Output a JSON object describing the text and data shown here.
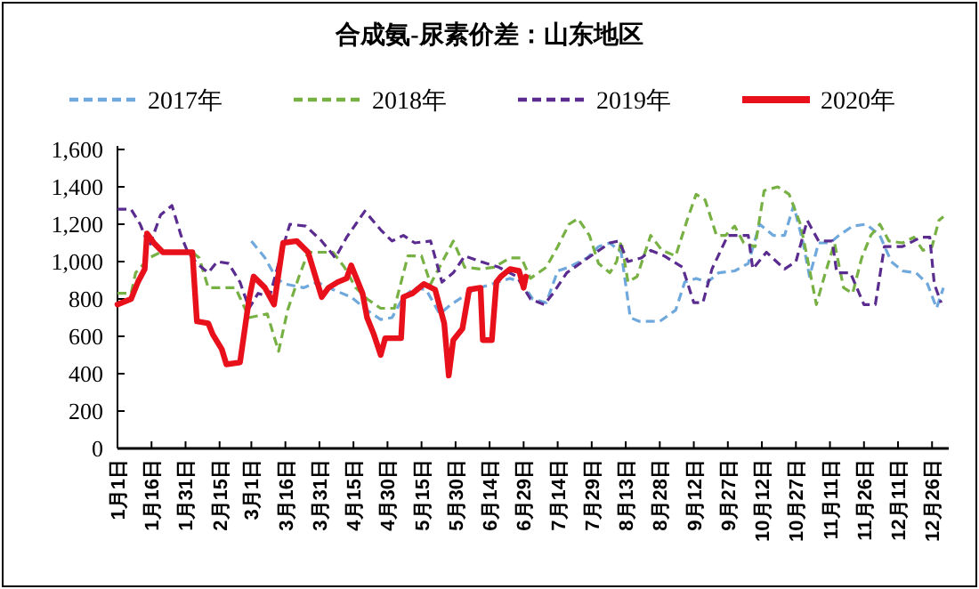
{
  "chart_data": {
    "type": "line",
    "title": "合成氨-尿素价差：山东地区",
    "legend": "top",
    "marker": "none",
    "xlim": [
      "--01-01",
      "--12-31"
    ],
    "xticks": [
      {
        "value": "--01-01",
        "label": "1月1日"
      },
      {
        "value": "--01-16",
        "label": "1月16日"
      },
      {
        "value": "--01-31",
        "label": "1月31日"
      },
      {
        "value": "--02-15",
        "label": "2月15日"
      },
      {
        "value": "--03-01",
        "label": "3月1日"
      },
      {
        "value": "--03-16",
        "label": "3月16日"
      },
      {
        "value": "--03-31",
        "label": "3月31日"
      },
      {
        "value": "--04-15",
        "label": "4月15日"
      },
      {
        "value": "--04-30",
        "label": "4月30日"
      },
      {
        "value": "--05-15",
        "label": "5月15日"
      },
      {
        "value": "--05-30",
        "label": "5月30日"
      },
      {
        "value": "--06-14",
        "label": "6月14日"
      },
      {
        "value": "--06-29",
        "label": "6月29日"
      },
      {
        "value": "--07-14",
        "label": "7月14日"
      },
      {
        "value": "--07-29",
        "label": "7月29日"
      },
      {
        "value": "--08-13",
        "label": "8月13日"
      },
      {
        "value": "--08-28",
        "label": "8月28日"
      },
      {
        "value": "--09-12",
        "label": "9月12日"
      },
      {
        "value": "--09-27",
        "label": "9月27日"
      },
      {
        "value": "--10-12",
        "label": "10月12日"
      },
      {
        "value": "--10-27",
        "label": "10月27日"
      },
      {
        "value": "--11-11",
        "label": "11月11日"
      },
      {
        "value": "--11-26",
        "label": "11月26日"
      },
      {
        "value": "--12-11",
        "label": "12月11日"
      },
      {
        "value": "--12-26",
        "label": "12月26日"
      }
    ],
    "ylim": [
      0,
      1600
    ],
    "yticks": [
      0,
      {
        "value": 200,
        "label": "200"
      },
      {
        "value": 400,
        "label": "400"
      },
      {
        "value": 600,
        "label": "600"
      },
      {
        "value": 800,
        "label": "800"
      },
      {
        "value": 1000,
        "label": "1,000"
      },
      {
        "value": 1200,
        "label": "1,200"
      },
      {
        "value": 1400,
        "label": "1,400"
      },
      {
        "value": 1600,
        "label": "1,600"
      }
    ],
    "series": [
      {
        "name": "2017年",
        "color": "#6fa8dc",
        "line_style": "dashed",
        "x": [
          "--03-01",
          "--03-07",
          "--03-12",
          "--03-16",
          "--03-24",
          "--03-30",
          "--04-06",
          "--04-14",
          "--04-21",
          "--04-27",
          "--05-02",
          "--05-07",
          "--05-12",
          "--05-17",
          "--05-23",
          "--05-28",
          "--06-02",
          "--06-07",
          "--06-15",
          "--06-23",
          "--06-28",
          "--07-03",
          "--07-09",
          "--07-14",
          "--07-19",
          "--07-27",
          "--08-01",
          "--08-06",
          "--08-11",
          "--08-15",
          "--08-19",
          "--08-28",
          "--09-04",
          "--09-08",
          "--09-13",
          "--09-18",
          "--09-23",
          "--09-30",
          "--10-06",
          "--10-11",
          "--10-17",
          "--10-22",
          "--10-26",
          "--10-30",
          "--11-02",
          "--11-06",
          "--11-11",
          "--11-15",
          "--11-21",
          "--11-27",
          "--12-03",
          "--12-08",
          "--12-13",
          "--12-19",
          "--12-24",
          "--12-28",
          "--12-31"
        ],
        "values": [
          1110,
          1020,
          910,
          880,
          860,
          890,
          850,
          810,
          740,
          690,
          700,
          810,
          860,
          850,
          720,
          770,
          810,
          850,
          880,
          910,
          890,
          800,
          780,
          950,
          970,
          1020,
          1080,
          1100,
          1050,
          700,
          680,
          680,
          740,
          890,
          910,
          890,
          940,
          950,
          990,
          1200,
          1140,
          1140,
          1300,
          1110,
          920,
          1100,
          1100,
          1140,
          1190,
          1200,
          1140,
          1000,
          950,
          940,
          880,
          750,
          860
        ]
      },
      {
        "name": "2018年",
        "color": "#77b043",
        "line_style": "dashed",
        "x": [
          "--01-01",
          "--01-07",
          "--01-09",
          "--01-15",
          "--01-20",
          "--02-03",
          "--02-06",
          "--02-10",
          "--02-22",
          "--02-28",
          "--03-08",
          "--03-13",
          "--03-17",
          "--03-22",
          "--03-26",
          "--04-06",
          "--04-11",
          "--04-16",
          "--04-21",
          "--04-27",
          "--05-03",
          "--05-06",
          "--05-09",
          "--05-15",
          "--05-19",
          "--05-29",
          "--06-03",
          "--06-10",
          "--06-16",
          "--06-23",
          "--06-28",
          "--07-02",
          "--07-09",
          "--07-14",
          "--07-19",
          "--07-23",
          "--07-28",
          "--08-01",
          "--08-06",
          "--08-09",
          "--08-11",
          "--08-14",
          "--08-18",
          "--08-24",
          "--08-29",
          "--09-04",
          "--09-09",
          "--09-13",
          "--09-17",
          "--09-22",
          "--09-26",
          "--09-30",
          "--10-04",
          "--10-09",
          "--10-13",
          "--10-19",
          "--10-24",
          "--10-29",
          "--11-01",
          "--11-05",
          "--11-09",
          "--11-13",
          "--11-17",
          "--11-21",
          "--11-25",
          "--11-29",
          "--12-03",
          "--12-07",
          "--12-13",
          "--12-18",
          "--12-22",
          "--12-26",
          "--12-29",
          "--12-31"
        ],
        "values": [
          830,
          830,
          940,
          1020,
          1050,
          1050,
          1020,
          860,
          860,
          700,
          720,
          520,
          740,
          920,
          1050,
          1050,
          970,
          860,
          800,
          750,
          750,
          890,
          1030,
          1030,
          880,
          1110,
          970,
          960,
          970,
          1020,
          1020,
          910,
          970,
          1080,
          1200,
          1230,
          1140,
          990,
          940,
          1000,
          1110,
          890,
          920,
          1140,
          1060,
          1030,
          1220,
          1360,
          1330,
          1140,
          1140,
          1190,
          1100,
          1080,
          1380,
          1400,
          1360,
          1200,
          1020,
          770,
          940,
          1100,
          860,
          830,
          1020,
          1140,
          1200,
          1110,
          1100,
          1130,
          1060,
          1080,
          1220,
          1240
        ]
      },
      {
        "name": "2019年",
        "color": "#5b2c8f",
        "line_style": "dashed",
        "x": [
          "--01-01",
          "--01-07",
          "--01-11",
          "--01-15",
          "--01-20",
          "--01-25",
          "--01-29",
          "--02-01",
          "--02-05",
          "--02-10",
          "--02-14",
          "--02-19",
          "--02-24",
          "--02-28",
          "--03-04",
          "--03-09",
          "--03-15",
          "--03-18",
          "--03-25",
          "--04-01",
          "--04-07",
          "--04-12",
          "--04-16",
          "--04-20",
          "--04-27",
          "--05-02",
          "--05-07",
          "--05-12",
          "--05-19",
          "--05-24",
          "--05-29",
          "--06-03",
          "--06-10",
          "--06-18",
          "--06-26",
          "--07-02",
          "--07-08",
          "--07-12",
          "--07-18",
          "--07-25",
          "--07-31",
          "--08-06",
          "--08-10",
          "--08-14",
          "--08-20",
          "--08-24",
          "--08-30",
          "--09-07",
          "--09-12",
          "--09-16",
          "--09-20",
          "--09-27",
          "--10-06",
          "--10-08",
          "--10-14",
          "--10-22",
          "--10-27",
          "--11-01",
          "--11-06",
          "--11-12",
          "--11-14",
          "--11-20",
          "--11-26",
          "--12-01",
          "--12-05",
          "--12-13",
          "--12-21",
          "--12-25",
          "--12-27",
          "--12-30"
        ],
        "values": [
          1280,
          1280,
          1200,
          1080,
          1250,
          1300,
          1140,
          1050,
          990,
          940,
          1000,
          990,
          890,
          750,
          830,
          810,
          1080,
          1200,
          1190,
          1110,
          1020,
          1130,
          1200,
          1270,
          1170,
          1110,
          1140,
          1100,
          1110,
          890,
          940,
          1030,
          1000,
          970,
          920,
          800,
          770,
          830,
          940,
          1000,
          1050,
          1100,
          1110,
          1000,
          1020,
          1060,
          1030,
          970,
          780,
          780,
          960,
          1140,
          1140,
          960,
          1050,
          960,
          1000,
          1220,
          1110,
          1110,
          940,
          940,
          770,
          770,
          1080,
          1080,
          1130,
          1130,
          880,
          780
        ]
      },
      {
        "name": "2020年",
        "color": "#e8101a",
        "line_style": "solid",
        "x": [
          "--01-01",
          "--01-07",
          "--01-10",
          "--01-13",
          "--01-14",
          "--01-17",
          "--01-21",
          "--02-03",
          "--02-05",
          "--02-10",
          "--02-12",
          "--02-16",
          "--02-18",
          "--02-24",
          "--02-28",
          "--03-02",
          "--03-07",
          "--03-11",
          "--03-15",
          "--03-21",
          "--03-26",
          "--04-01",
          "--04-04",
          "--04-08",
          "--04-12",
          "--04-14",
          "--04-19",
          "--04-21",
          "--04-24",
          "--04-27",
          "--04-29",
          "--05-06",
          "--05-07",
          "--05-11",
          "--05-16",
          "--05-21",
          "--05-25",
          "--05-27",
          "--05-29",
          "--06-02",
          "--06-05",
          "--06-10",
          "--06-11",
          "--06-15",
          "--06-17",
          "--06-19",
          "--06-23",
          "--06-27",
          "--06-29",
          "--06-30"
        ],
        "values": [
          770,
          800,
          890,
          960,
          1150,
          1100,
          1050,
          1050,
          680,
          670,
          610,
          530,
          450,
          460,
          800,
          920,
          860,
          770,
          1100,
          1110,
          1050,
          810,
          860,
          890,
          910,
          980,
          830,
          700,
          610,
          500,
          590,
          590,
          810,
          830,
          880,
          850,
          670,
          390,
          580,
          640,
          850,
          860,
          580,
          580,
          890,
          920,
          960,
          950,
          860,
          920
        ]
      }
    ]
  }
}
